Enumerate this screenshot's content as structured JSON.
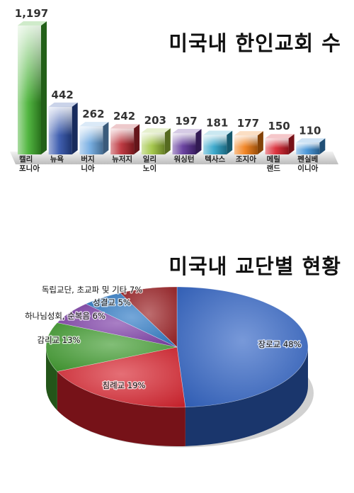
{
  "chart_data": [
    {
      "type": "bar",
      "title": "미국내 한인교회 수",
      "categories": [
        [
          "캘리",
          "포니아"
        ],
        [
          "뉴욕"
        ],
        [
          "버지",
          "니아"
        ],
        [
          "뉴저지"
        ],
        [
          "일리",
          "노이"
        ],
        [
          "워싱턴"
        ],
        [
          "텍사스"
        ],
        [
          "조지아"
        ],
        [
          "메릴",
          "랜드"
        ],
        [
          "펜실베",
          "이니아"
        ]
      ],
      "values": [
        1197,
        442,
        262,
        242,
        203,
        197,
        181,
        177,
        150,
        110
      ],
      "value_labels": [
        "1,197",
        "442",
        "262",
        "242",
        "203",
        "197",
        "181",
        "177",
        "150",
        "110"
      ],
      "colors": [
        "#3fae2c",
        "#2c4ea8",
        "#6aa6df",
        "#b8262f",
        "#9cc23a",
        "#5a2f97",
        "#2aa1c7",
        "#f07a10",
        "#d81f2b",
        "#3b8fd6"
      ],
      "ylim": [
        0,
        1197
      ],
      "grid": false
    },
    {
      "type": "pie",
      "title": "미국내 교단별 현황",
      "slices": [
        {
          "label": "장로교 48%",
          "value": 48,
          "color": "#2f62c4"
        },
        {
          "label": "침례교 19%",
          "value": 19,
          "color": "#d7212c"
        },
        {
          "label": "감리교 13%",
          "value": 13,
          "color": "#3f9b2e"
        },
        {
          "label": "하나님성회, 순복음 6%",
          "value": 6,
          "color": "#7a3aa6"
        },
        {
          "label": "성결교 5%",
          "value": 5,
          "color": "#2a78c4"
        },
        {
          "label": "독립교단, 초교파 및 기타  7%",
          "value": 7,
          "color": "#9a1e22"
        }
      ]
    }
  ]
}
